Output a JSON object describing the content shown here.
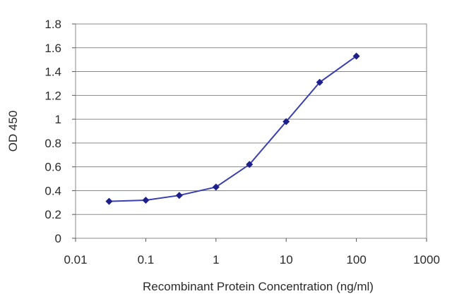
{
  "chart_data": {
    "type": "line",
    "title": "",
    "xlabel": "Recombinant Protein Concentration (ng/ml)",
    "ylabel": "OD 450",
    "xscale": "log",
    "xlim": [
      0.01,
      1000
    ],
    "ylim": [
      0,
      1.8
    ],
    "x_ticks": [
      "0.01",
      "0.1",
      "1",
      "10",
      "100",
      "1000"
    ],
    "y_ticks": [
      "0",
      "0.2",
      "0.4",
      "0.6",
      "0.8",
      "1",
      "1.2",
      "1.4",
      "1.6",
      "1.8"
    ],
    "grid": "horizontal",
    "legend": "none",
    "series": [
      {
        "x": [
          0.03,
          0.1,
          0.3,
          1,
          3,
          10,
          30,
          100
        ],
        "y": [
          0.31,
          0.32,
          0.36,
          0.43,
          0.62,
          0.98,
          1.31,
          1.53
        ]
      }
    ],
    "colors": {
      "line": "#3a3fb0",
      "marker": "#1c1f8c",
      "grid": "#8a8a8a",
      "frame": "#8a8a8a"
    }
  }
}
